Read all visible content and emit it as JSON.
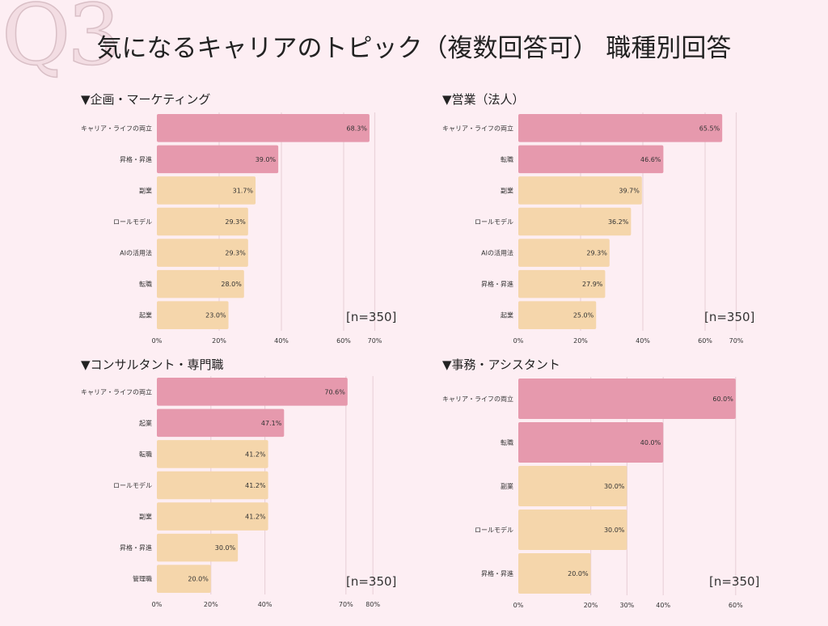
{
  "watermark": "Q3",
  "title": "気になるキャリアのトピック（複数回答可） 職種別回答",
  "colors": {
    "highlight": "#e699ad",
    "normal": "#f5d6ab",
    "grid": "#ead3da"
  },
  "chart_data": [
    {
      "type": "bar",
      "orientation": "horizontal",
      "title": "▼企画・マーケティング",
      "note": "[n=350]",
      "categories": [
        "キャリア・ライフの両立",
        "昇格・昇進",
        "副業",
        "ロールモデル",
        "AIの活用法",
        "転職",
        "起業"
      ],
      "values": [
        68.3,
        39.0,
        31.7,
        29.3,
        29.3,
        28.0,
        23.0
      ],
      "highlight_count": 2,
      "xticks": [
        "0%",
        "20%",
        "40%",
        "60%",
        "70%"
      ]
    },
    {
      "type": "bar",
      "orientation": "horizontal",
      "title": "▼営業（法人）",
      "note": "[n=350]",
      "categories": [
        "キャリア・ライフの両立",
        "転職",
        "副業",
        "ロールモデル",
        "AIの活用法",
        "昇格・昇進",
        "起業"
      ],
      "values": [
        65.5,
        46.6,
        39.7,
        36.2,
        29.3,
        27.9,
        25.0
      ],
      "highlight_count": 2,
      "xticks": [
        "0%",
        "20%",
        "40%",
        "60%",
        "70%"
      ]
    },
    {
      "type": "bar",
      "orientation": "horizontal",
      "title": "▼コンサルタント・専門職",
      "note": "[n=350]",
      "categories": [
        "キャリア・ライフの両立",
        "起業",
        "転職",
        "ロールモデル",
        "副業",
        "昇格・昇進",
        "管理職"
      ],
      "values": [
        70.6,
        47.1,
        41.2,
        41.2,
        41.2,
        30.0,
        20.0
      ],
      "highlight_count": 2,
      "xticks": [
        "0%",
        "20%",
        "40%",
        "70%",
        "80%"
      ]
    },
    {
      "type": "bar",
      "orientation": "horizontal",
      "title": "▼事務・アシスタント",
      "note": "[n=350]",
      "categories": [
        "キャリア・ライフの両立",
        "転職",
        "副業",
        "ロールモデル",
        "昇格・昇進"
      ],
      "values": [
        60.0,
        40.0,
        30.0,
        30.0,
        20.0
      ],
      "highlight_count": 2,
      "xticks": [
        "0%",
        "20%",
        "30%",
        "40%",
        "60%"
      ]
    }
  ]
}
